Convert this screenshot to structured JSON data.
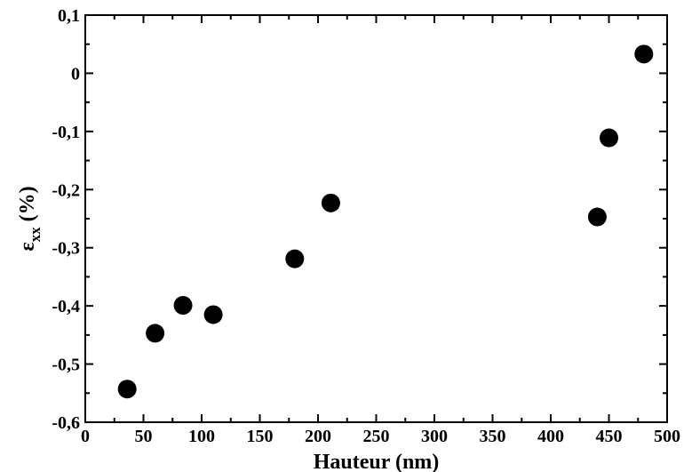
{
  "chart_data": {
    "type": "scatter",
    "title": "",
    "xlabel": "Hauteur (nm)",
    "ylabel": {
      "symbol": "ε",
      "subscript": "xx",
      "unit": "(%)"
    },
    "xlim": [
      0,
      500
    ],
    "ylim": [
      -0.6,
      0.1
    ],
    "x_ticks": [
      {
        "value": 0,
        "label": "0"
      },
      {
        "value": 50,
        "label": "50"
      },
      {
        "value": 100,
        "label": "100"
      },
      {
        "value": 150,
        "label": "150"
      },
      {
        "value": 200,
        "label": "200"
      },
      {
        "value": 250,
        "label": "250"
      },
      {
        "value": 300,
        "label": "300"
      },
      {
        "value": 350,
        "label": "350"
      },
      {
        "value": 400,
        "label": "400"
      },
      {
        "value": 450,
        "label": "450"
      },
      {
        "value": 500,
        "label": "500"
      }
    ],
    "y_ticks": [
      {
        "value": 0.1,
        "label": "0,1"
      },
      {
        "value": 0,
        "label": "0"
      },
      {
        "value": -0.1,
        "label": "-0,1"
      },
      {
        "value": -0.2,
        "label": "-0,2"
      },
      {
        "value": -0.3,
        "label": "-0,3"
      },
      {
        "value": -0.4,
        "label": "-0,4"
      },
      {
        "value": -0.5,
        "label": "-0,5"
      },
      {
        "value": -0.6,
        "label": "-0,6"
      }
    ],
    "grid": false,
    "series": [
      {
        "points": [
          {
            "x": 36,
            "y": -0.543
          },
          {
            "x": 60,
            "y": -0.447
          },
          {
            "x": 84,
            "y": -0.399
          },
          {
            "x": 110,
            "y": -0.415
          },
          {
            "x": 180,
            "y": -0.319
          },
          {
            "x": 211,
            "y": -0.223
          },
          {
            "x": 440,
            "y": -0.247
          },
          {
            "x": 450,
            "y": -0.111
          },
          {
            "x": 480,
            "y": 0.033
          }
        ]
      }
    ]
  }
}
